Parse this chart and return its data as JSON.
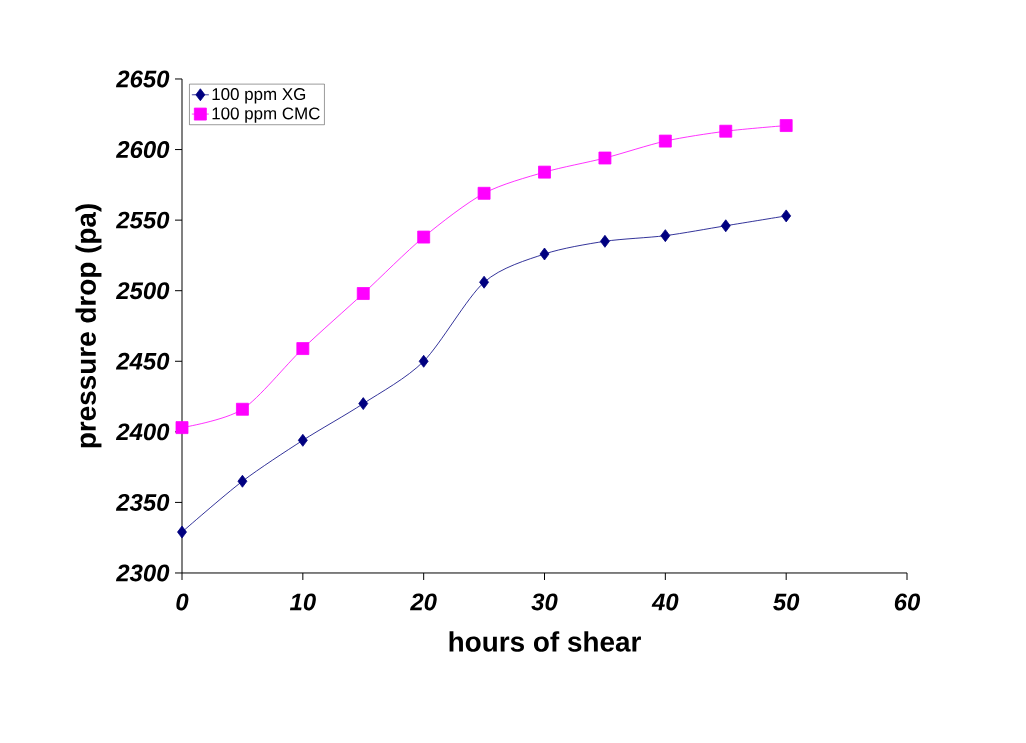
{
  "chart_data": {
    "type": "line",
    "xlabel": "hours of shear",
    "ylabel": "pressure drop (pa)",
    "x": [
      0,
      5,
      10,
      15,
      20,
      25,
      30,
      35,
      40,
      45,
      50
    ],
    "series": [
      {
        "name": "100 ppm XG",
        "color": "#000080",
        "marker": "diamond",
        "values": [
          2329,
          2365,
          2394,
          2420,
          2450,
          2506,
          2526,
          2535,
          2539,
          2546,
          2553
        ]
      },
      {
        "name": "100 ppm CMC",
        "color": "#ff00ff",
        "marker": "square",
        "values": [
          2403,
          2416,
          2459,
          2498,
          2538,
          2569,
          2584,
          2594,
          2606,
          2613,
          2617
        ]
      }
    ],
    "xlim": [
      0,
      60
    ],
    "xticks": [
      0,
      10,
      20,
      30,
      40,
      50,
      60
    ],
    "ylim": [
      2300,
      2650
    ],
    "yticks": [
      2300,
      2350,
      2400,
      2450,
      2500,
      2550,
      2600,
      2650
    ],
    "grid": false,
    "legend": "top left"
  }
}
